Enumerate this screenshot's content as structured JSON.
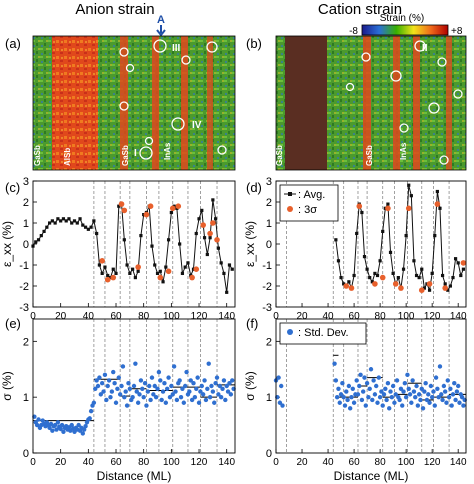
{
  "headers": {
    "left": "Anion strain",
    "right": "Cation strain"
  },
  "colorbar": {
    "title": "Strain (%)",
    "min_label": "-8",
    "max_label": "+8",
    "arrow_label": "A"
  },
  "panel_labels": {
    "a": "(a)",
    "b": "(b)",
    "c": "(c)",
    "d": "(d)",
    "e": "(e)",
    "f": "(f)"
  },
  "map_a": {
    "layers": [
      "GaSb",
      "AlSb",
      "GaSb",
      "InAs"
    ],
    "markers": [
      "I",
      "III",
      "IV"
    ]
  },
  "map_b": {
    "layers": [
      "GaSb",
      "GaSb",
      "InAs"
    ],
    "markers": [
      "II"
    ]
  },
  "colors": {
    "avg": "#111111",
    "sigma3": "#e8602c",
    "stddev": "#2f6fd0",
    "grid": "#8a8a8a"
  },
  "chart_data": [
    {
      "id": "c",
      "type": "line",
      "xlabel": "",
      "ylabel": "ε_xx (%)",
      "xlim": [
        0,
        146
      ],
      "ylim": [
        -3,
        3
      ],
      "yticks": [
        -3,
        -2,
        -1,
        0,
        1,
        2,
        3
      ],
      "xticks": [
        0,
        20,
        40,
        60,
        80,
        100,
        120,
        140
      ],
      "vlines": [
        44,
        52,
        63,
        70,
        82,
        91,
        101,
        112,
        121,
        133
      ],
      "hlines": [],
      "series": [
        {
          "name": "",
          "x": [
            0,
            2,
            4,
            6,
            8,
            10,
            12,
            14,
            16,
            18,
            20,
            22,
            24,
            26,
            28,
            30,
            32,
            34,
            36,
            38,
            40,
            42,
            44,
            46,
            48,
            50,
            52,
            54,
            56,
            58,
            60,
            62,
            64,
            66,
            68,
            70,
            72,
            74,
            76,
            78,
            80,
            82,
            84,
            86,
            88,
            90,
            92,
            94,
            96,
            98,
            100,
            102,
            104,
            106,
            108,
            110,
            112,
            114,
            116,
            118,
            120,
            122,
            124,
            126,
            128,
            130,
            132,
            134,
            136,
            138,
            140,
            142,
            144
          ],
          "y": [
            -0.1,
            0.1,
            0.2,
            0.4,
            0.6,
            0.8,
            1.0,
            1.1,
            1.0,
            1.2,
            1.1,
            1.2,
            1.1,
            1.2,
            1.0,
            1.1,
            1.0,
            1.2,
            0.9,
            0.8,
            0.7,
            0.8,
            1.1,
            0.5,
            -1.0,
            -1.4,
            -1.1,
            -1.5,
            -1.6,
            -1.2,
            -1.4,
            1.8,
            1.9,
            0.2,
            -1.0,
            -1.4,
            -1.2,
            -1.6,
            -1.3,
            0.4,
            1.4,
            1.5,
            1.8,
            -0.1,
            -1.0,
            -1.4,
            -1.3,
            -1.8,
            -1.1,
            0.2,
            1.5,
            1.8,
            1.7,
            0.0,
            -1.4,
            -1.1,
            -0.9,
            -1.5,
            -1.2,
            0.5,
            1.2,
            1.6,
            0.3,
            -0.5,
            0.3,
            2.1,
            1.2,
            -0.2,
            -0.9,
            -1.4,
            -2.3,
            -1.0,
            -1.2
          ]
        }
      ],
      "sigma3_points": {
        "x": [
          50,
          54,
          58,
          64,
          66,
          76,
          82,
          85,
          92,
          98,
          101,
          105,
          115,
          118,
          123,
          128,
          130,
          133
        ],
        "y": [
          -0.8,
          -1.7,
          -1.6,
          1.9,
          1.6,
          -1.1,
          1.4,
          1.8,
          -1.6,
          -1.3,
          1.7,
          1.8,
          -1.6,
          -1.2,
          0.9,
          0.5,
          1.0,
          0.2
        ]
      }
    },
    {
      "id": "d",
      "type": "line",
      "xlabel": "",
      "ylabel": "ε_xx (%)",
      "xlim": [
        0,
        146
      ],
      "ylim": [
        -3,
        3
      ],
      "yticks": [
        -3,
        -2,
        -1,
        0,
        1,
        2,
        3
      ],
      "xticks": [
        0,
        20,
        40,
        60,
        80,
        100,
        120,
        140
      ],
      "vlines": [
        8,
        44,
        52,
        63,
        70,
        82,
        91,
        101,
        112,
        121,
        133
      ],
      "hlines": [],
      "legend": [
        {
          "label": ": Avg."
        },
        {
          "label": ": 3σ"
        }
      ],
      "series": [
        {
          "name": "Avg.",
          "x": [
            46,
            48,
            50,
            52,
            54,
            56,
            58,
            60,
            62,
            64,
            66,
            68,
            70,
            72,
            74,
            76,
            78,
            80,
            82,
            84,
            86,
            88,
            90,
            92,
            94,
            96,
            98,
            100,
            102,
            104,
            106,
            108,
            110,
            112,
            114,
            116,
            118,
            120,
            122,
            124,
            126,
            128,
            130,
            132,
            134,
            136,
            138,
            140,
            142,
            144
          ],
          "y": [
            0.2,
            -0.8,
            -1.6,
            -1.9,
            -2.0,
            -1.8,
            -2.1,
            -1.5,
            0.5,
            1.9,
            1.5,
            -0.6,
            -1.2,
            -1.6,
            -1.8,
            -1.4,
            -1.5,
            -0.8,
            0.6,
            1.7,
            1.9,
            -0.4,
            -1.4,
            -1.9,
            -1.6,
            -2.1,
            -1.2,
            0.4,
            2.8,
            2.3,
            -0.8,
            -1.5,
            -1.6,
            -1.2,
            -2.1,
            -1.9,
            -2.2,
            -1.4,
            0.4,
            2.5,
            1.7,
            -1.5,
            -1.9,
            -2.2,
            -2.0,
            -1.6,
            -0.7,
            -0.9,
            -1.5,
            -1.2
          ]
        }
      ],
      "sigma3_points": {
        "x": [
          54,
          58,
          64,
          76,
          82,
          86,
          92,
          96,
          102,
          112,
          118,
          124,
          130,
          144
        ],
        "y": [
          -2.0,
          -2.1,
          1.8,
          -1.9,
          -1.6,
          1.7,
          -1.9,
          -2.1,
          1.7,
          -2.2,
          -1.9,
          1.9,
          -2.1,
          -0.9
        ]
      }
    },
    {
      "id": "e",
      "type": "scatter",
      "xlabel": "Distance (ML)",
      "ylabel": "σ (%)",
      "xlim": [
        0,
        146
      ],
      "ylim": [
        0,
        2.4
      ],
      "yticks": [
        0,
        1,
        2
      ],
      "xticks": [
        0,
        20,
        40,
        60,
        80,
        100,
        120,
        140
      ],
      "vlines": [
        44,
        52,
        63,
        70,
        82,
        91,
        101,
        112,
        121,
        133
      ],
      "hlines": [],
      "steps": [
        [
          0,
          44,
          0.58
        ],
        [
          44,
          63,
          1.32
        ],
        [
          63,
          70,
          1.02
        ],
        [
          70,
          82,
          1.15
        ],
        [
          82,
          101,
          1.12
        ],
        [
          101,
          121,
          1.18
        ],
        [
          121,
          133,
          1.0
        ],
        [
          133,
          146,
          1.22
        ]
      ],
      "series": [
        {
          "name": "",
          "x": [
            1,
            2,
            3,
            4,
            5,
            6,
            7,
            8,
            9,
            10,
            11,
            12,
            13,
            14,
            15,
            16,
            17,
            18,
            19,
            20,
            21,
            22,
            23,
            24,
            25,
            26,
            27,
            28,
            29,
            30,
            31,
            32,
            33,
            34,
            35,
            36,
            37,
            38,
            39,
            40,
            41,
            42,
            43,
            44,
            45,
            46,
            47,
            48,
            49,
            50,
            51,
            52,
            53,
            54,
            55,
            56,
            57,
            58,
            59,
            60,
            61,
            62,
            63,
            64,
            65,
            66,
            67,
            68,
            69,
            70,
            71,
            72,
            73,
            74,
            75,
            76,
            77,
            78,
            79,
            80,
            81,
            82,
            83,
            84,
            85,
            86,
            87,
            88,
            89,
            90,
            91,
            92,
            93,
            94,
            95,
            96,
            97,
            98,
            99,
            100,
            101,
            102,
            103,
            104,
            105,
            106,
            107,
            108,
            109,
            110,
            111,
            112,
            113,
            114,
            115,
            116,
            117,
            118,
            119,
            120,
            121,
            122,
            123,
            124,
            125,
            126,
            127,
            128,
            129,
            130,
            131,
            132,
            133,
            134,
            135,
            136,
            137,
            138,
            139,
            140,
            141,
            142,
            143,
            144,
            145
          ],
          "y": [
            0.65,
            0.55,
            0.5,
            0.6,
            0.45,
            0.5,
            0.58,
            0.52,
            0.48,
            0.55,
            0.5,
            0.45,
            0.52,
            0.4,
            0.48,
            0.5,
            0.42,
            0.55,
            0.47,
            0.43,
            0.5,
            0.38,
            0.45,
            0.48,
            0.42,
            0.46,
            0.4,
            0.5,
            0.44,
            0.38,
            0.45,
            0.42,
            0.5,
            0.4,
            0.45,
            0.35,
            0.42,
            0.48,
            0.55,
            0.6,
            0.62,
            0.75,
            0.85,
            0.9,
            1.15,
            1.3,
            1.2,
            1.35,
            1.05,
            1.25,
            1.1,
            1.4,
            0.95,
            1.2,
            1.3,
            1.0,
            1.1,
            1.45,
            1.25,
            0.9,
            1.15,
            1.35,
            1.05,
            1.2,
            1.55,
            1.0,
            1.1,
            0.85,
            1.25,
            1.15,
            0.95,
            1.0,
            1.2,
            1.6,
            1.1,
            0.9,
            1.05,
            1.3,
            1.15,
            1.0,
            1.25,
            0.85,
            1.1,
            1.2,
            0.95,
            1.35,
            1.05,
            1.2,
            1.0,
            1.15,
            1.45,
            1.3,
            0.95,
            1.1,
            1.25,
            0.9,
            1.15,
            1.35,
            1.0,
            1.2,
            1.05,
            1.55,
            1.1,
            0.95,
            1.25,
            1.3,
            1.0,
            1.15,
            0.9,
            1.2,
            1.45,
            1.05,
            1.1,
            1.3,
            0.95,
            1.25,
            1.0,
            1.15,
            1.35,
            0.9,
            1.1,
            1.2,
            1.05,
            1.3,
            0.95,
            1.15,
            1.6,
            1.0,
            1.2,
            1.1,
            0.9,
            1.25,
            1.35,
            1.05,
            1.2,
            1.0,
            1.15,
            1.3,
            0.95,
            1.2,
            1.1,
            1.25,
            1.05,
            1.3,
            1.15
          ]
        }
      ]
    },
    {
      "id": "f",
      "type": "scatter",
      "xlabel": "Distance (ML)",
      "ylabel": "σ (%)",
      "xlim": [
        0,
        146
      ],
      "ylim": [
        0,
        2.4
      ],
      "yticks": [
        0,
        1,
        2
      ],
      "xticks": [
        0,
        20,
        40,
        60,
        80,
        100,
        120,
        140
      ],
      "vlines": [
        8,
        44,
        52,
        63,
        70,
        82,
        91,
        101,
        112,
        121,
        133
      ],
      "hlines": [],
      "legend": [
        {
          "label": ": Std. Dev."
        }
      ],
      "steps": [
        [
          44,
          48,
          1.75
        ],
        [
          48,
          63,
          1.0
        ],
        [
          63,
          70,
          1.2
        ],
        [
          70,
          82,
          1.35
        ],
        [
          82,
          91,
          1.0
        ],
        [
          91,
          101,
          1.05
        ],
        [
          101,
          112,
          1.25
        ],
        [
          112,
          121,
          0.95
        ],
        [
          121,
          133,
          1.0
        ],
        [
          133,
          146,
          1.05
        ]
      ],
      "series": [
        {
          "name": "Std. Dev.",
          "x": [
            0,
            1,
            2,
            3,
            4,
            5,
            45,
            46,
            47,
            48,
            49,
            50,
            51,
            52,
            53,
            54,
            55,
            56,
            57,
            58,
            59,
            60,
            61,
            62,
            63,
            64,
            65,
            66,
            67,
            68,
            69,
            70,
            71,
            72,
            73,
            74,
            75,
            76,
            77,
            78,
            79,
            80,
            81,
            82,
            83,
            84,
            85,
            86,
            87,
            88,
            89,
            90,
            91,
            92,
            93,
            94,
            95,
            96,
            97,
            98,
            99,
            100,
            101,
            102,
            103,
            104,
            105,
            106,
            107,
            108,
            109,
            110,
            111,
            112,
            113,
            114,
            115,
            116,
            117,
            118,
            119,
            120,
            121,
            122,
            123,
            124,
            125,
            126,
            127,
            128,
            129,
            130,
            131,
            132,
            133,
            134,
            135,
            136,
            137,
            138,
            139,
            140,
            141,
            142,
            143,
            144,
            145
          ],
          "y": [
            1.3,
            1.0,
            1.35,
            0.9,
            1.2,
            0.85,
            1.6,
            1.3,
            1.0,
            1.15,
            0.9,
            1.05,
            1.25,
            1.0,
            0.85,
            1.1,
            0.95,
            1.2,
            0.8,
            1.0,
            1.15,
            0.9,
            1.05,
            1.3,
            1.05,
            1.2,
            1.4,
            0.95,
            1.1,
            1.35,
            0.85,
            1.25,
            1.0,
            1.15,
            1.5,
            0.95,
            1.3,
            1.05,
            1.2,
            0.9,
            1.35,
            1.0,
            1.1,
            0.85,
            1.05,
            1.15,
            0.95,
            1.25,
            0.8,
            1.1,
            1.0,
            1.2,
            0.9,
            1.05,
            1.3,
            1.0,
            0.95,
            1.15,
            0.85,
            1.1,
            1.25,
            1.0,
            1.4,
            1.15,
            1.05,
            0.9,
            1.3,
            1.1,
            1.0,
            1.2,
            0.85,
            1.05,
            0.95,
            1.15,
            0.8,
            1.1,
            1.25,
            0.95,
            1.05,
            0.9,
            1.2,
            1.0,
            1.1,
            0.85,
            1.35,
            1.15,
            1.0,
            1.55,
            1.05,
            0.95,
            1.2,
            1.1,
            0.9,
            1.3,
            1.0,
            1.15,
            0.85,
            1.05,
            1.25,
            0.95,
            1.1,
            1.2,
            0.9,
            1.05,
            1.0,
            0.85,
            0.95
          ]
        }
      ]
    }
  ]
}
